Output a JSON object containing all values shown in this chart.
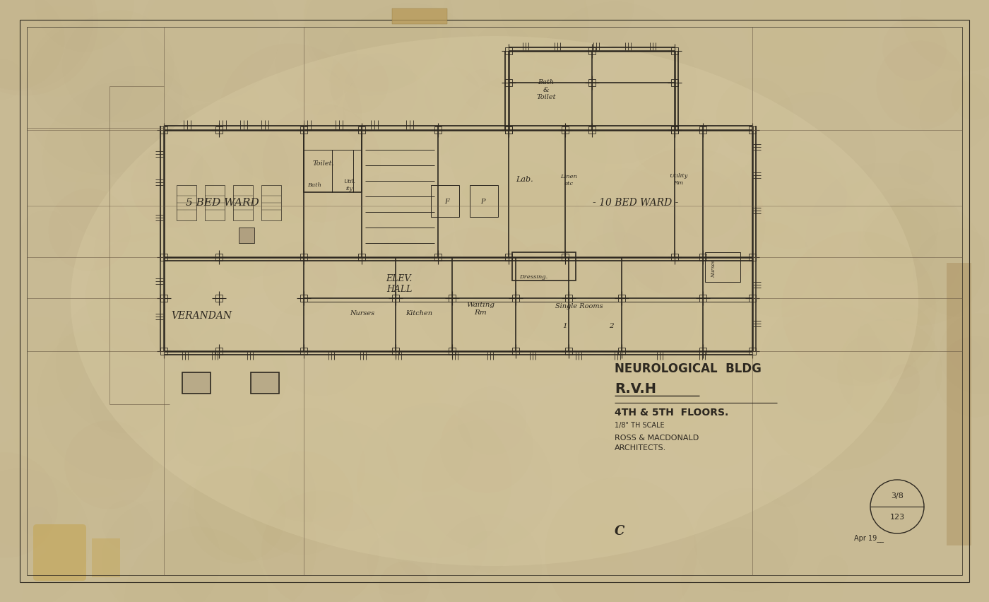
{
  "bg_color": "#c8ba94",
  "line_color": "#2d2820",
  "title_line1": "NEUROLOGICAL BLDG",
  "title_line2": "R.V.H",
  "title_line3": "4TH & 5TH  FLOORS.",
  "title_line4": "1/8\" TH SCALE",
  "title_line5": "ROSS & MACDONALD",
  "title_line6": "ARCHITECTS.",
  "drawing_id": "C",
  "sheet_num_top": "3/8",
  "sheet_num_bot": "123",
  "sheet_date": "Apr 19__",
  "tape_color": "#b89a5a",
  "damaged_color": "#c4a042"
}
